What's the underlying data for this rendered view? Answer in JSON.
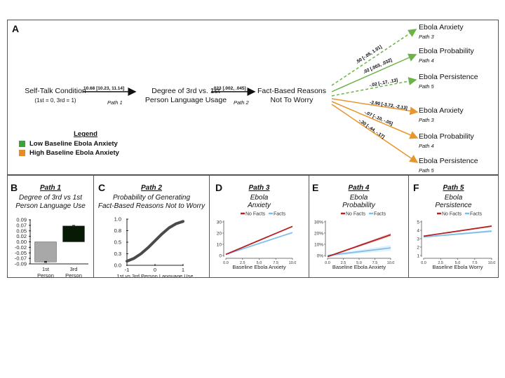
{
  "panel_a": {
    "letter": "A",
    "nodes": {
      "self_talk": {
        "line1": "Self-Talk Condition",
        "line2": "(1st = 0, 3rd = 1)"
      },
      "degree": {
        "line1": "Degree of 3rd vs. 1st",
        "line2": "Person Language Usage"
      },
      "fact_based": {
        "line1": "Fact-Based Reasons",
        "line2": "Not To Worry"
      }
    },
    "edges": {
      "path1": {
        "estimate": "10.68  [10.23, 11.14]",
        "label": "Path 1"
      },
      "path2": {
        "estimate": ".023  [.002, .045]",
        "label": "Path 2"
      }
    },
    "outcomes_low": [
      {
        "name": "Ebola Anxiety",
        "path": "Path 3",
        "estimate": ".50  [-.05, 1.01]",
        "significant": false
      },
      {
        "name": "Ebola Probability",
        "path": "Path 4",
        "estimate": ".02 [.003, .032]",
        "significant": true
      },
      {
        "name": "Ebola Persistence",
        "path": "Path 5",
        "estimate": "-.02  [-.17, .13]",
        "significant": false
      }
    ],
    "outcomes_high": [
      {
        "name": "Ebola Anxiety",
        "path": "Path 3",
        "estimate": "-2.90  [-3.72, -2.13]"
      },
      {
        "name": "Ebola Probability",
        "path": "Path 4",
        "estimate": "-.07  [-.10, -.05]"
      },
      {
        "name": "Ebola Persistence",
        "path": "Path 5",
        "estimate": "-.30  [-.44, -.17]"
      }
    ],
    "legend": {
      "title": "Legend",
      "items": [
        {
          "label": "Low Baseline Ebola Anxiety",
          "color": "#3aa335"
        },
        {
          "label": "High Baseline Ebola Anxiety",
          "color": "#e8892b"
        }
      ]
    },
    "colors": {
      "low": "#6bb346",
      "high": "#e8962c"
    }
  },
  "chart_data": [
    {
      "id": "B",
      "type": "bar",
      "letter": "B",
      "path_title": "Path 1",
      "title_line1": "Degree of 3rd vs 1st",
      "title_line2": "Person Language Use",
      "categories": [
        "1st\nPerson",
        "3rd\nPerson"
      ],
      "category_lines": [
        [
          "1st",
          "Person"
        ],
        [
          "3rd",
          "Person"
        ]
      ],
      "values": [
        -0.082,
        0.065
      ],
      "errors": [
        0.002,
        0.002
      ],
      "colors": [
        "#a8a8a8",
        "#061a06"
      ],
      "yticks": [
        "0.09",
        "0.07",
        "0.05",
        "0.02",
        "0.00",
        "-0.02",
        "-0.05",
        "-0.07",
        "-0.09"
      ],
      "ylim": [
        -0.09,
        0.09
      ]
    },
    {
      "id": "C",
      "type": "line",
      "letter": "C",
      "path_title": "Path 2",
      "title_line1": "Probability of Generating",
      "title_line2": "Fact-Based Reasons Not to Worry",
      "xlabel": "1st vs 3rd Person Language Use",
      "x": [
        -1,
        -0.75,
        -0.5,
        -0.25,
        0,
        0.25,
        0.5,
        0.75,
        1
      ],
      "y": [
        0.09,
        0.15,
        0.25,
        0.38,
        0.53,
        0.68,
        0.81,
        0.9,
        0.95
      ],
      "xticks": [
        "-1",
        "0",
        "1"
      ],
      "yticks": [
        "1.0",
        "0.8",
        "0.5",
        "0.3",
        "0.0"
      ],
      "xlim": [
        -1,
        1
      ],
      "ylim": [
        0,
        1
      ]
    },
    {
      "id": "D",
      "type": "line",
      "letter": "D",
      "path_title": "Path 3",
      "title_line1": "Ebola",
      "title_line2": "Anxiety",
      "xlabel": "Baseline Ebola Anxiety",
      "legend": [
        "No Facts",
        "Facts"
      ],
      "series": [
        {
          "name": "No Facts",
          "x": [
            0,
            10
          ],
          "y": [
            1,
            26
          ],
          "color": "#b52020",
          "band": 0.3
        },
        {
          "name": "Facts",
          "x": [
            0,
            10
          ],
          "y": [
            1,
            20.5
          ],
          "color": "#7fbfe8",
          "band": 0.3
        }
      ],
      "xticks": [
        "0.0",
        "2.5",
        "5.0",
        "7.5",
        "10.0"
      ],
      "yticks": [
        "30",
        "20",
        "10",
        "0"
      ],
      "xlim": [
        0,
        10
      ],
      "ylim": [
        0,
        30
      ]
    },
    {
      "id": "E",
      "type": "line",
      "letter": "E",
      "path_title": "Path 4",
      "title_line1": "Ebola",
      "title_line2": "Probability",
      "xlabel": "Baseline Ebola Anxiety",
      "legend": [
        "No Facts",
        "Facts"
      ],
      "series": [
        {
          "name": "No Facts",
          "x": [
            0,
            10
          ],
          "y": [
            -1,
            18.5
          ],
          "color": "#b52020",
          "band": 1.5
        },
        {
          "name": "Facts",
          "x": [
            0,
            10
          ],
          "y": [
            0,
            6.8
          ],
          "color": "#7fbfe8",
          "band": 2.5
        }
      ],
      "xticks": [
        "0.0",
        "2.5",
        "5.0",
        "7.5",
        "10.0"
      ],
      "yticks": [
        "30%",
        "20%",
        "10%",
        "0%"
      ],
      "xlim": [
        0,
        10
      ],
      "ylim": [
        0,
        30
      ]
    },
    {
      "id": "F",
      "type": "line",
      "letter": "F",
      "path_title": "Path 5",
      "title_line1": "Ebola",
      "title_line2": "Persistence",
      "xlabel": "Baseline Ebola Worry",
      "legend": [
        "No Facts",
        "Facts"
      ],
      "series": [
        {
          "name": "No Facts",
          "x": [
            0,
            10
          ],
          "y": [
            3.3,
            4.5
          ],
          "color": "#b52020",
          "band": 0.1
        },
        {
          "name": "Facts",
          "x": [
            0,
            10
          ],
          "y": [
            3.2,
            3.9
          ],
          "color": "#7fbfe8",
          "band": 0.15
        }
      ],
      "xticks": [
        "0.0",
        "2.5",
        "5.0",
        "7.5",
        "10.0"
      ],
      "yticks": [
        "5",
        "4",
        "3",
        "2",
        "1"
      ],
      "xlim": [
        0,
        10
      ],
      "ylim": [
        1,
        5
      ]
    }
  ]
}
